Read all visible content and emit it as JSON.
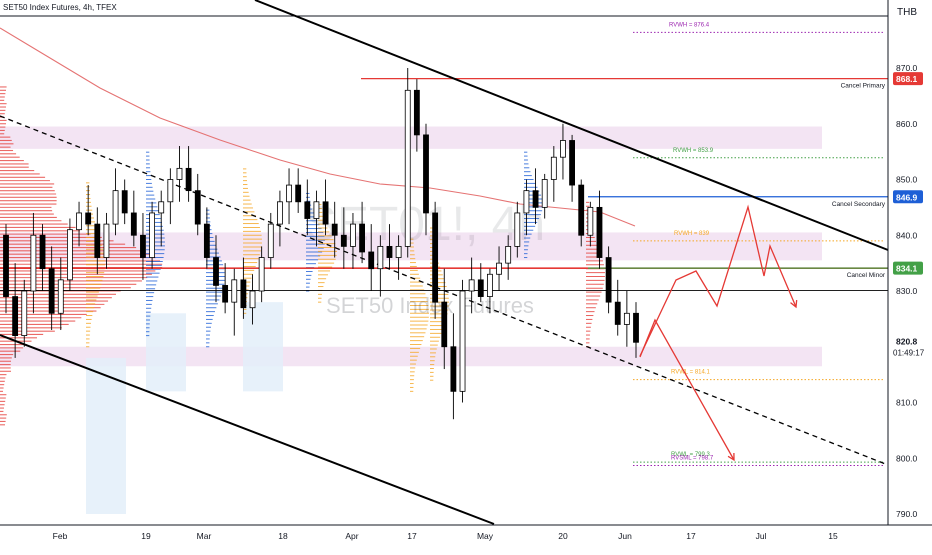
{
  "header": {
    "symbol_line": "SET50 Index Futures, 4h, TFEX"
  },
  "currency": "THB",
  "watermark": {
    "symbol": "SET01!, 4h",
    "name": "SET50 Index Futures"
  },
  "colors": {
    "red": "#e53935",
    "blue": "#1e5fd6",
    "green": "#43a047",
    "orange": "#f5a623",
    "purple": "#9c27b0",
    "band": "#f3e4f3",
    "candle": "#000000",
    "ma": "#e57373"
  },
  "chart_data": {
    "type": "candlestick",
    "title": "SET50 Index Futures, 4h, TFEX",
    "ylim": [
      787,
      879
    ],
    "y_ticks": [
      870.0,
      860.0,
      850.0,
      840.0,
      830.0,
      820.0,
      810.0,
      800.0,
      790.0
    ],
    "x_ticks": [
      "Feb",
      "19",
      "Mar",
      "18",
      "Apr",
      "17",
      "May",
      "20",
      "Jun",
      "17",
      "Jul",
      "15"
    ],
    "last_price": 820.8,
    "countdown": "01:49:17",
    "price_tags": [
      {
        "value": 868.1,
        "color": "red"
      },
      {
        "value": 846.9,
        "color": "blue"
      },
      {
        "value": 834.1,
        "color": "green"
      }
    ],
    "levels": [
      {
        "label": "Cancel Primary",
        "value": 868.1,
        "color": "red",
        "style": "solid"
      },
      {
        "label": "Cancel Secondary",
        "value": 846.9,
        "color": "blue",
        "style": "solid"
      },
      {
        "label": "Cancel Minor",
        "value": 834.1,
        "color": "green",
        "style": "solid"
      },
      {
        "label": "RVWH = 876.4",
        "value": 876.4,
        "color": "purple",
        "style": "dotted"
      },
      {
        "label": "RVWH = 853.9",
        "value": 853.9,
        "color": "green",
        "style": "dotted"
      },
      {
        "label": "RVWH = 839",
        "value": 839.0,
        "color": "orange",
        "style": "dotted"
      },
      {
        "label": "RVWL = 814.1",
        "value": 814.1,
        "color": "orange",
        "style": "dotted"
      },
      {
        "label": "RVWL = 799.3",
        "value": 799.3,
        "color": "green",
        "style": "dotted"
      },
      {
        "label": "RVSML = 798.7",
        "value": 798.7,
        "color": "purple",
        "style": "dotted"
      }
    ],
    "zones": [
      {
        "from": 855.5,
        "to": 859.5
      },
      {
        "from": 835.5,
        "to": 840.5
      },
      {
        "from": 816.5,
        "to": 820.0
      }
    ],
    "candles": [
      [
        840,
        842,
        826,
        829
      ],
      [
        829,
        835,
        818,
        822
      ],
      [
        822,
        832,
        820,
        830
      ],
      [
        830,
        844,
        826,
        840
      ],
      [
        840,
        842,
        830,
        834
      ],
      [
        834,
        838,
        823,
        826
      ],
      [
        826,
        836,
        823,
        832
      ],
      [
        832,
        843,
        830,
        841
      ],
      [
        841,
        846,
        838,
        844
      ],
      [
        844,
        849,
        840,
        842
      ],
      [
        842,
        845,
        833,
        836
      ],
      [
        836,
        844,
        834,
        842
      ],
      [
        842,
        852,
        840,
        848
      ],
      [
        848,
        850,
        842,
        844
      ],
      [
        844,
        848,
        838,
        840
      ],
      [
        840,
        844,
        832,
        836
      ],
      [
        836,
        846,
        834,
        844
      ],
      [
        844,
        848,
        838,
        846
      ],
      [
        846,
        852,
        842,
        850
      ],
      [
        850,
        856,
        846,
        852
      ],
      [
        852,
        856,
        846,
        848
      ],
      [
        848,
        851,
        840,
        842
      ],
      [
        842,
        845,
        834,
        836
      ],
      [
        836,
        840,
        828,
        831
      ],
      [
        831,
        835,
        826,
        828
      ],
      [
        828,
        834,
        822,
        832
      ],
      [
        832,
        836,
        825,
        827
      ],
      [
        827,
        833,
        824,
        830
      ],
      [
        830,
        838,
        828,
        836
      ],
      [
        836,
        844,
        834,
        842
      ],
      [
        842,
        848,
        838,
        846
      ],
      [
        846,
        852,
        842,
        849
      ],
      [
        849,
        852,
        844,
        846
      ],
      [
        846,
        850,
        840,
        843
      ],
      [
        843,
        848,
        838,
        846
      ],
      [
        846,
        850,
        840,
        842
      ],
      [
        842,
        846,
        836,
        840
      ],
      [
        840,
        845,
        834,
        838
      ],
      [
        838,
        844,
        834,
        842
      ],
      [
        842,
        846,
        835,
        837
      ],
      [
        837,
        842,
        830,
        834
      ],
      [
        834,
        840,
        829,
        838
      ],
      [
        838,
        842,
        834,
        836
      ],
      [
        836,
        840,
        832,
        838
      ],
      [
        838,
        870,
        836,
        866
      ],
      [
        866,
        868,
        855,
        858
      ],
      [
        858,
        860,
        840,
        844
      ],
      [
        844,
        846,
        825,
        828
      ],
      [
        828,
        834,
        816,
        820
      ],
      [
        820,
        826,
        807,
        812
      ],
      [
        812,
        832,
        810,
        830
      ],
      [
        830,
        836,
        826,
        832
      ],
      [
        832,
        835,
        828,
        829
      ],
      [
        829,
        834,
        826,
        833
      ],
      [
        833,
        838,
        830,
        835
      ],
      [
        835,
        840,
        832,
        838
      ],
      [
        838,
        846,
        836,
        844
      ],
      [
        844,
        850,
        840,
        848
      ],
      [
        848,
        852,
        842,
        845
      ],
      [
        845,
        851,
        843,
        850
      ],
      [
        850,
        856,
        846,
        854
      ],
      [
        854,
        860,
        850,
        857
      ],
      [
        857,
        858,
        846,
        849
      ],
      [
        849,
        850,
        838,
        840
      ],
      [
        840,
        846,
        838,
        845
      ],
      [
        845,
        848,
        834,
        836
      ],
      [
        836,
        838,
        826,
        828
      ],
      [
        828,
        832,
        822,
        824
      ],
      [
        824,
        830,
        820,
        826
      ],
      [
        826,
        828,
        818,
        820.8
      ]
    ],
    "forecast_paths": [
      [
        [
          640,
          356
        ],
        [
          676,
          280
        ],
        [
          696,
          271
        ],
        [
          717,
          306
        ],
        [
          748,
          207
        ],
        [
          764,
          276
        ],
        [
          770,
          246
        ],
        [
          796,
          307
        ]
      ],
      [
        [
          640,
          357
        ],
        [
          655,
          320
        ],
        [
          734,
          460
        ]
      ]
    ]
  }
}
